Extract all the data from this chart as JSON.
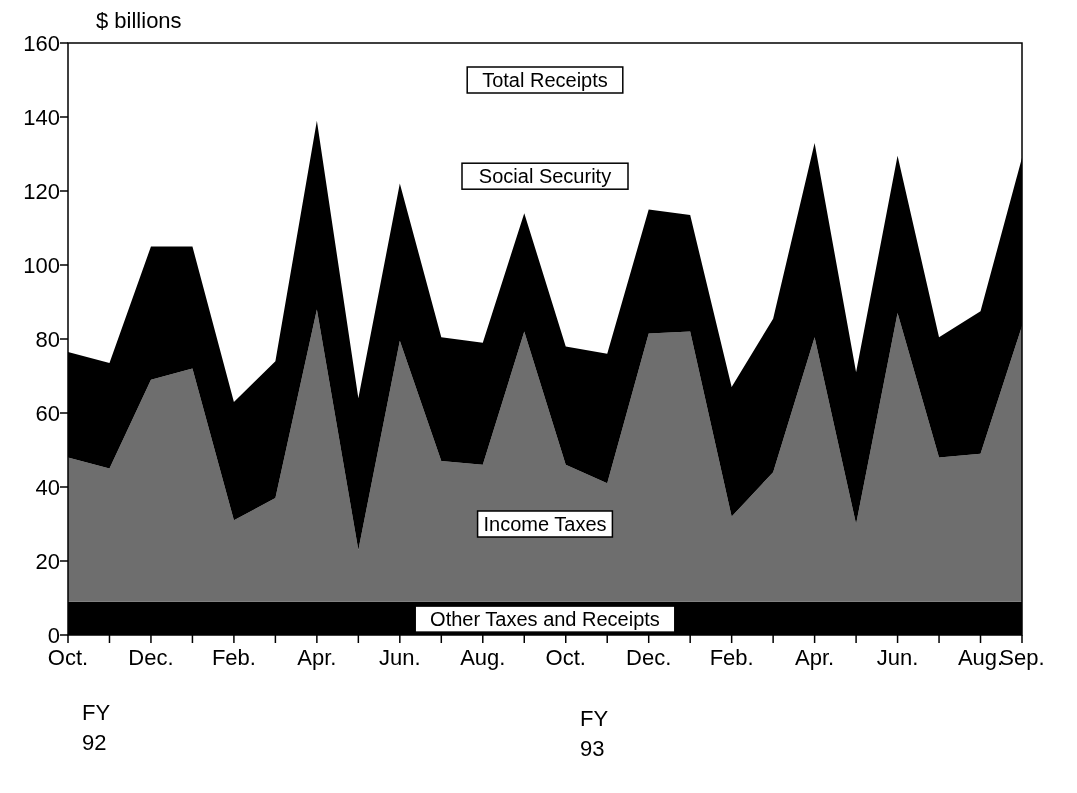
{
  "chart_data": {
    "type": "area",
    "stacked": true,
    "ylabel": "$ billions",
    "categories": [
      "Oct.",
      null,
      "Dec.",
      null,
      "Feb.",
      null,
      "Apr.",
      null,
      "Jun.",
      null,
      "Aug.",
      null,
      "Oct.",
      null,
      "Dec.",
      null,
      "Feb.",
      null,
      "Apr.",
      null,
      "Jun.",
      null,
      "Aug.",
      "Sep."
    ],
    "series": [
      {
        "name": "Other Taxes and Receipts",
        "color": "#000000",
        "values": [
          9,
          9,
          9,
          9,
          9,
          9,
          9,
          9,
          9,
          9,
          9,
          9,
          9,
          9,
          9,
          9,
          9,
          9,
          9,
          9,
          9,
          9,
          9,
          9
        ]
      },
      {
        "name": "Income Taxes",
        "color": "#6e6e6e",
        "values": [
          39,
          36,
          60,
          63,
          22,
          28,
          79,
          14,
          70.5,
          38,
          37,
          73,
          37,
          32,
          72.5,
          73,
          23,
          35,
          71.5,
          21,
          78,
          39,
          40,
          74.5
        ]
      },
      {
        "name": "Social Security",
        "color": "#000000",
        "values": [
          28.5,
          28.5,
          36,
          33,
          32,
          37,
          51,
          41,
          42.5,
          33.5,
          33,
          32,
          32,
          35,
          33.5,
          31.5,
          35,
          41.5,
          52.5,
          41,
          42.5,
          32.5,
          38.5,
          45.5
        ]
      }
    ],
    "ylim": [
      0,
      160
    ],
    "yticks": [
      0,
      20,
      40,
      60,
      80,
      100,
      120,
      140,
      160
    ],
    "annotations": [
      "Total Receipts",
      "FY 92",
      "FY 93"
    ]
  }
}
